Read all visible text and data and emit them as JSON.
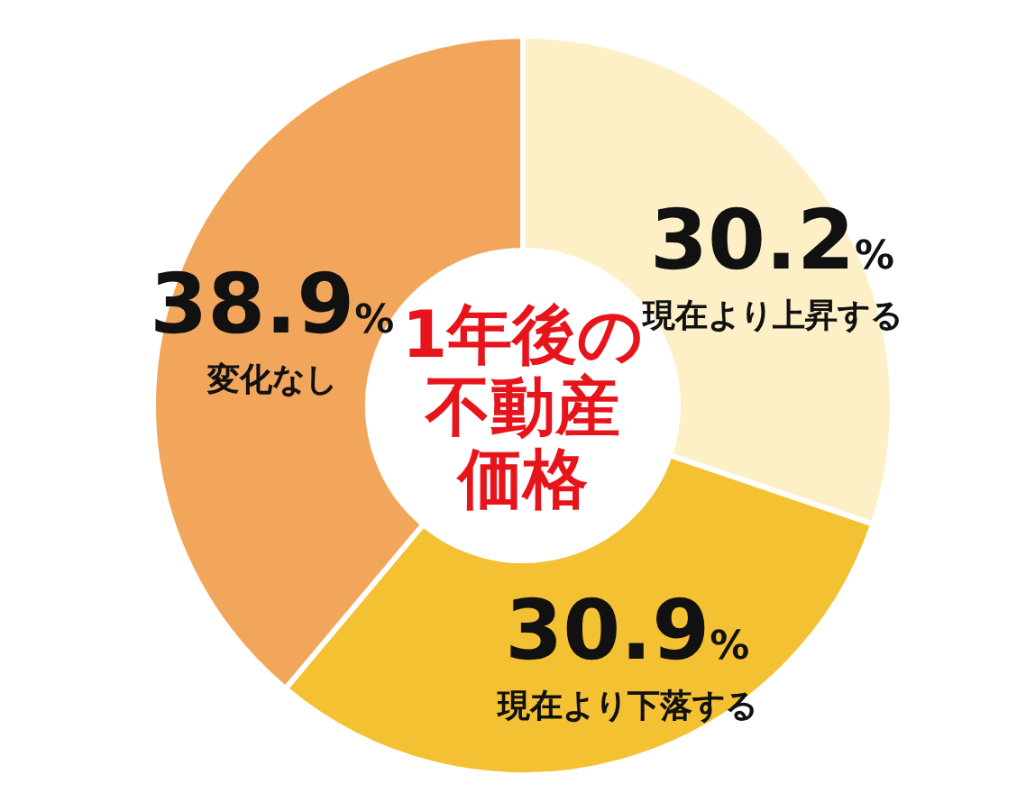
{
  "chart_data": {
    "type": "donut",
    "title": "1年後の不動産価格",
    "categories": [
      "現在より上昇する",
      "現在より下落する",
      "変化なし"
    ],
    "values": [
      30.2,
      30.9,
      38.9
    ],
    "colors": [
      "#fdefc6",
      "#f3c131",
      "#f2a65c"
    ],
    "value_labels": [
      "30.2%",
      "30.9%",
      "38.9%"
    ]
  }
}
